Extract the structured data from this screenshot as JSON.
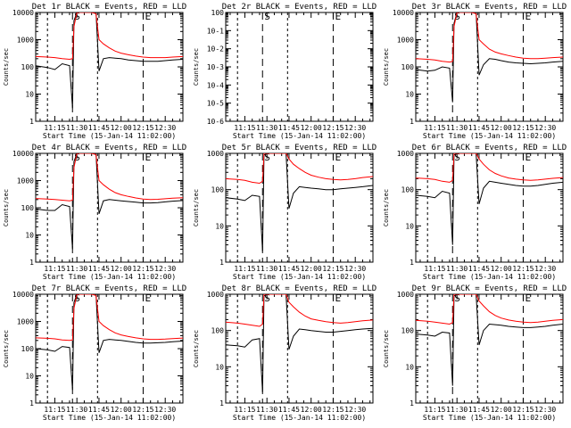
{
  "colors": {
    "events": "#000000",
    "lld": "#ff0000",
    "axes": "#000000",
    "background": "#ffffff"
  },
  "x_axis": {
    "ticks": [
      "11:15",
      "11:30",
      "11:45",
      "12:00",
      "12:15",
      "12:30"
    ],
    "tick_minutes": [
      675,
      690,
      705,
      720,
      735,
      750
    ],
    "range_minutes": [
      662,
      762
    ],
    "label": "Start Time (15-Jan-14 11:02:00)"
  },
  "markers": [
    {
      "symbol": "",
      "minute": 670
    },
    {
      "symbol": "S",
      "minute": 687
    },
    {
      "symbol": "",
      "minute": 704
    },
    {
      "symbol": "E",
      "minute": 735
    }
  ],
  "chart_data": [
    {
      "type": "line",
      "title": "Det 1r BLACK = Events, RED = LLD",
      "ylabel": "Counts/sec",
      "yscale": "log",
      "ylim": [
        1,
        10000
      ],
      "y_ticks": [
        "1",
        "10",
        "100",
        "1000",
        "10000"
      ],
      "x_minutes": [
        662,
        670,
        675,
        680,
        685,
        687,
        688,
        690,
        695,
        700,
        703,
        705,
        708,
        712,
        716,
        720,
        725,
        730,
        735,
        740,
        745,
        750,
        755,
        762
      ],
      "series": [
        {
          "name": "Events",
          "values": [
            110,
            95,
            80,
            130,
            110,
            3,
            5000,
            10000,
            10000,
            10000,
            10000,
            70,
            200,
            220,
            210,
            200,
            180,
            170,
            160,
            160,
            160,
            170,
            180,
            190
          ]
        },
        {
          "name": "LLD",
          "values": [
            240,
            230,
            220,
            200,
            190,
            200,
            3000,
            10000,
            10000,
            10000,
            9000,
            1000,
            700,
            500,
            380,
            320,
            280,
            250,
            230,
            220,
            220,
            220,
            230,
            240
          ]
        }
      ]
    },
    {
      "type": "line",
      "title": "Det 2r BLACK = Events, RED = LLD",
      "ylabel": "Counts/sec",
      "yscale": "log",
      "ylim": [
        1e-06,
        1
      ],
      "y_ticks": [
        "10-6",
        "10-5",
        "10-4",
        "10-3",
        "10-2",
        "10-1",
        "100"
      ],
      "x_minutes": [],
      "series": []
    },
    {
      "type": "line",
      "title": "Det 3r BLACK = Events, RED = LLD",
      "ylabel": "Counts/sec",
      "yscale": "log",
      "ylim": [
        1,
        10000
      ],
      "y_ticks": [
        "1",
        "10",
        "100",
        "1000",
        "10000"
      ],
      "x_minutes": [
        662,
        670,
        675,
        680,
        685,
        687,
        688,
        690,
        695,
        700,
        703,
        705,
        708,
        712,
        716,
        720,
        725,
        730,
        735,
        740,
        745,
        750,
        755,
        762
      ],
      "series": [
        {
          "name": "Events",
          "values": [
            80,
            70,
            75,
            100,
            90,
            5,
            4000,
            10000,
            10000,
            10000,
            10000,
            50,
            120,
            200,
            190,
            170,
            150,
            140,
            135,
            130,
            135,
            140,
            150,
            160
          ]
        },
        {
          "name": "LLD",
          "values": [
            200,
            190,
            180,
            160,
            150,
            160,
            3000,
            10000,
            10000,
            10000,
            9000,
            1000,
            700,
            450,
            350,
            300,
            260,
            230,
            210,
            200,
            200,
            210,
            220,
            230
          ]
        }
      ]
    },
    {
      "type": "line",
      "title": "Det 4r BLACK = Events, RED = LLD",
      "ylabel": "Counts/sec",
      "yscale": "log",
      "ylim": [
        1,
        10000
      ],
      "y_ticks": [
        "1",
        "10",
        "100",
        "1000",
        "10000"
      ],
      "x_minutes": [
        662,
        670,
        675,
        680,
        685,
        687,
        688,
        690,
        695,
        700,
        703,
        705,
        708,
        712,
        716,
        720,
        725,
        730,
        735,
        740,
        745,
        750,
        755,
        762
      ],
      "series": [
        {
          "name": "Events",
          "values": [
            90,
            80,
            80,
            130,
            110,
            3,
            5000,
            10000,
            10000,
            10000,
            10000,
            60,
            180,
            200,
            190,
            180,
            170,
            160,
            150,
            150,
            155,
            165,
            175,
            185
          ]
        },
        {
          "name": "LLD",
          "values": [
            220,
            210,
            200,
            190,
            180,
            190,
            3000,
            10000,
            10000,
            10000,
            9000,
            1000,
            700,
            480,
            360,
            300,
            260,
            230,
            210,
            200,
            205,
            215,
            225,
            235
          ]
        }
      ]
    },
    {
      "type": "line",
      "title": "Det 5r BLACK = Events, RED = LLD",
      "ylabel": "Counts/sec",
      "yscale": "log",
      "ylim": [
        1,
        1000
      ],
      "y_ticks": [
        "1",
        "10",
        "100",
        "1000"
      ],
      "x_minutes": [
        662,
        670,
        675,
        680,
        685,
        687,
        688,
        690,
        695,
        700,
        703,
        705,
        708,
        712,
        716,
        720,
        725,
        730,
        735,
        740,
        745,
        750,
        755,
        762
      ],
      "series": [
        {
          "name": "Events",
          "values": [
            60,
            55,
            50,
            70,
            65,
            2,
            900,
            1000,
            1000,
            1000,
            1000,
            30,
            80,
            120,
            115,
            110,
            105,
            100,
            100,
            105,
            110,
            115,
            120,
            130
          ]
        },
        {
          "name": "LLD",
          "values": [
            200,
            190,
            180,
            160,
            150,
            170,
            1000,
            1000,
            1000,
            1000,
            1000,
            700,
            500,
            380,
            300,
            250,
            220,
            200,
            190,
            185,
            190,
            200,
            215,
            230
          ]
        }
      ]
    },
    {
      "type": "line",
      "title": "Det 6r BLACK = Events, RED = LLD",
      "ylabel": "Counts/sec",
      "yscale": "log",
      "ylim": [
        1,
        1000
      ],
      "y_ticks": [
        "1",
        "10",
        "100",
        "1000"
      ],
      "x_minutes": [
        662,
        670,
        675,
        680,
        685,
        687,
        688,
        690,
        695,
        700,
        703,
        705,
        708,
        712,
        716,
        720,
        725,
        730,
        735,
        740,
        745,
        750,
        755,
        762
      ],
      "series": [
        {
          "name": "Events",
          "values": [
            70,
            65,
            60,
            90,
            80,
            3,
            900,
            1000,
            1000,
            1000,
            1000,
            40,
            110,
            170,
            160,
            150,
            140,
            130,
            125,
            125,
            130,
            140,
            150,
            160
          ]
        },
        {
          "name": "LLD",
          "values": [
            210,
            200,
            190,
            170,
            160,
            180,
            1000,
            1000,
            1000,
            1000,
            1000,
            700,
            500,
            350,
            280,
            240,
            210,
            195,
            185,
            180,
            185,
            195,
            205,
            215
          ]
        }
      ]
    },
    {
      "type": "line",
      "title": "Det 7r BLACK = Events, RED = LLD",
      "ylabel": "Counts/sec",
      "yscale": "log",
      "ylim": [
        1,
        10000
      ],
      "y_ticks": [
        "1",
        "10",
        "100",
        "1000",
        "10000"
      ],
      "x_minutes": [
        662,
        670,
        675,
        680,
        685,
        687,
        688,
        690,
        695,
        700,
        703,
        705,
        708,
        712,
        716,
        720,
        725,
        730,
        735,
        740,
        745,
        750,
        755,
        762
      ],
      "series": [
        {
          "name": "Events",
          "values": [
            100,
            90,
            80,
            120,
            110,
            3,
            5000,
            10000,
            10000,
            10000,
            10000,
            70,
            200,
            220,
            210,
            200,
            185,
            170,
            160,
            160,
            165,
            170,
            180,
            190
          ]
        },
        {
          "name": "LLD",
          "values": [
            250,
            240,
            230,
            210,
            200,
            210,
            3000,
            10000,
            10000,
            10000,
            9000,
            1000,
            700,
            500,
            380,
            320,
            280,
            250,
            230,
            220,
            220,
            225,
            235,
            245
          ]
        }
      ]
    },
    {
      "type": "line",
      "title": "Det 8r BLACK = Events, RED = LLD",
      "ylabel": "Counts/sec",
      "yscale": "log",
      "ylim": [
        1,
        1000
      ],
      "y_ticks": [
        "1",
        "10",
        "100",
        "1000"
      ],
      "x_minutes": [
        662,
        670,
        675,
        680,
        685,
        687,
        688,
        690,
        695,
        700,
        703,
        705,
        708,
        712,
        716,
        720,
        725,
        730,
        735,
        740,
        745,
        750,
        755,
        762
      ],
      "series": [
        {
          "name": "Events",
          "values": [
            40,
            38,
            35,
            55,
            60,
            2,
            900,
            1000,
            1000,
            1000,
            1000,
            30,
            70,
            110,
            105,
            100,
            95,
            90,
            90,
            95,
            100,
            105,
            110,
            115
          ]
        },
        {
          "name": "LLD",
          "values": [
            170,
            160,
            150,
            140,
            130,
            150,
            1000,
            1000,
            1000,
            1000,
            1000,
            600,
            450,
            320,
            250,
            210,
            190,
            175,
            165,
            160,
            165,
            175,
            185,
            195
          ]
        }
      ]
    },
    {
      "type": "line",
      "title": "Det 9r BLACK = Events, RED = LLD",
      "ylabel": "Counts/sec",
      "yscale": "log",
      "ylim": [
        1,
        1000
      ],
      "y_ticks": [
        "1",
        "10",
        "100",
        "1000"
      ],
      "x_minutes": [
        662,
        670,
        675,
        680,
        685,
        687,
        688,
        690,
        695,
        700,
        703,
        705,
        708,
        712,
        716,
        720,
        725,
        730,
        735,
        740,
        745,
        750,
        755,
        762
      ],
      "series": [
        {
          "name": "Events",
          "values": [
            80,
            75,
            70,
            90,
            85,
            3,
            900,
            1000,
            1000,
            1000,
            1000,
            40,
            100,
            150,
            145,
            140,
            130,
            125,
            120,
            120,
            125,
            130,
            140,
            150
          ]
        },
        {
          "name": "LLD",
          "values": [
            190,
            180,
            170,
            160,
            150,
            165,
            1000,
            1000,
            1000,
            1000,
            1000,
            650,
            480,
            330,
            260,
            220,
            195,
            180,
            170,
            165,
            170,
            180,
            190,
            200
          ]
        }
      ]
    }
  ]
}
